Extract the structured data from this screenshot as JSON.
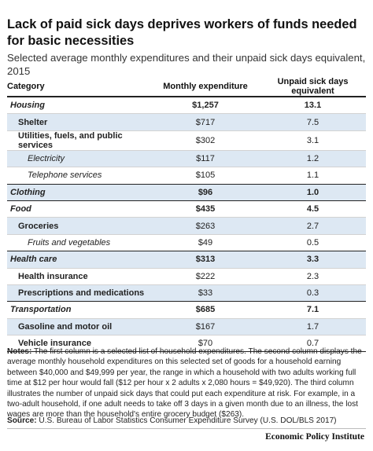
{
  "title": "Lack of paid sick days deprives workers of funds needed for basic necessities",
  "subtitle": "Selected average monthly expenditures and their unpaid sick days equivalent, 2015",
  "chart_data": {
    "type": "table",
    "columns": [
      "Category",
      "Monthly expenditure",
      "Unpaid sick days equivalent"
    ],
    "rows": [
      {
        "category": "Housing",
        "expenditure": "$1,257",
        "sick_days": "13.1",
        "level": "cat",
        "shade": false
      },
      {
        "category": "Shelter",
        "expenditure": "$717",
        "sick_days": "7.5",
        "level": "sub",
        "shade": true
      },
      {
        "category": "Utilities, fuels, and public services",
        "expenditure": "$302",
        "sick_days": "3.1",
        "level": "sub",
        "shade": false
      },
      {
        "category": "Electricity",
        "expenditure": "$117",
        "sick_days": "1.2",
        "level": "subsub",
        "shade": true
      },
      {
        "category": "Telephone services",
        "expenditure": "$105",
        "sick_days": "1.1",
        "level": "subsub",
        "shade": false
      },
      {
        "category": "Clothing",
        "expenditure": "$96",
        "sick_days": "1.0",
        "level": "cat",
        "shade": true
      },
      {
        "category": "Food",
        "expenditure": "$435",
        "sick_days": "4.5",
        "level": "cat",
        "shade": false
      },
      {
        "category": "Groceries",
        "expenditure": "$263",
        "sick_days": "2.7",
        "level": "sub",
        "shade": true
      },
      {
        "category": "Fruits and vegetables",
        "expenditure": "$49",
        "sick_days": "0.5",
        "level": "subsub",
        "shade": false
      },
      {
        "category": "Health care",
        "expenditure": "$313",
        "sick_days": "3.3",
        "level": "cat",
        "shade": true
      },
      {
        "category": "Health insurance",
        "expenditure": "$222",
        "sick_days": "2.3",
        "level": "sub",
        "shade": false
      },
      {
        "category": "Prescriptions and medications",
        "expenditure": "$33",
        "sick_days": "0.3",
        "level": "sub",
        "shade": true
      },
      {
        "category": "Transportation",
        "expenditure": "$685",
        "sick_days": "7.1",
        "level": "cat",
        "shade": false
      },
      {
        "category": "Gasoline and motor oil",
        "expenditure": "$167",
        "sick_days": "1.7",
        "level": "sub",
        "shade": true
      },
      {
        "category": "Vehicle insurance",
        "expenditure": "$70",
        "sick_days": "0.7",
        "level": "sub",
        "shade": false
      }
    ]
  },
  "notes": {
    "label": "Notes:",
    "text": "The first column is a selected list of household expenditures. The second column displays the average monthly household expenditures on this selected set of goods for a household earning between $40,000 and $49,999 per year, the range in which a household with two adults working full time at $12 per hour would fall ($12 per hour x 2 adults x 2,080 hours = $49,920). The third column illustrates the number of unpaid sick days that could put each expenditure at risk. For example, in a two-adult household, if one adult needs to take off 3 days in a given month due to an illness, the lost wages are more than the household's entire grocery budget ($263)."
  },
  "source": {
    "label": "Source:",
    "text": "U.S. Bureau of Labor Statistics Consumer Expenditure Survey (U.S. DOL/BLS 2017)"
  },
  "logo": "Economic Policy Institute",
  "colors": {
    "shade": "#dde8f3",
    "rule": "#222222"
  }
}
